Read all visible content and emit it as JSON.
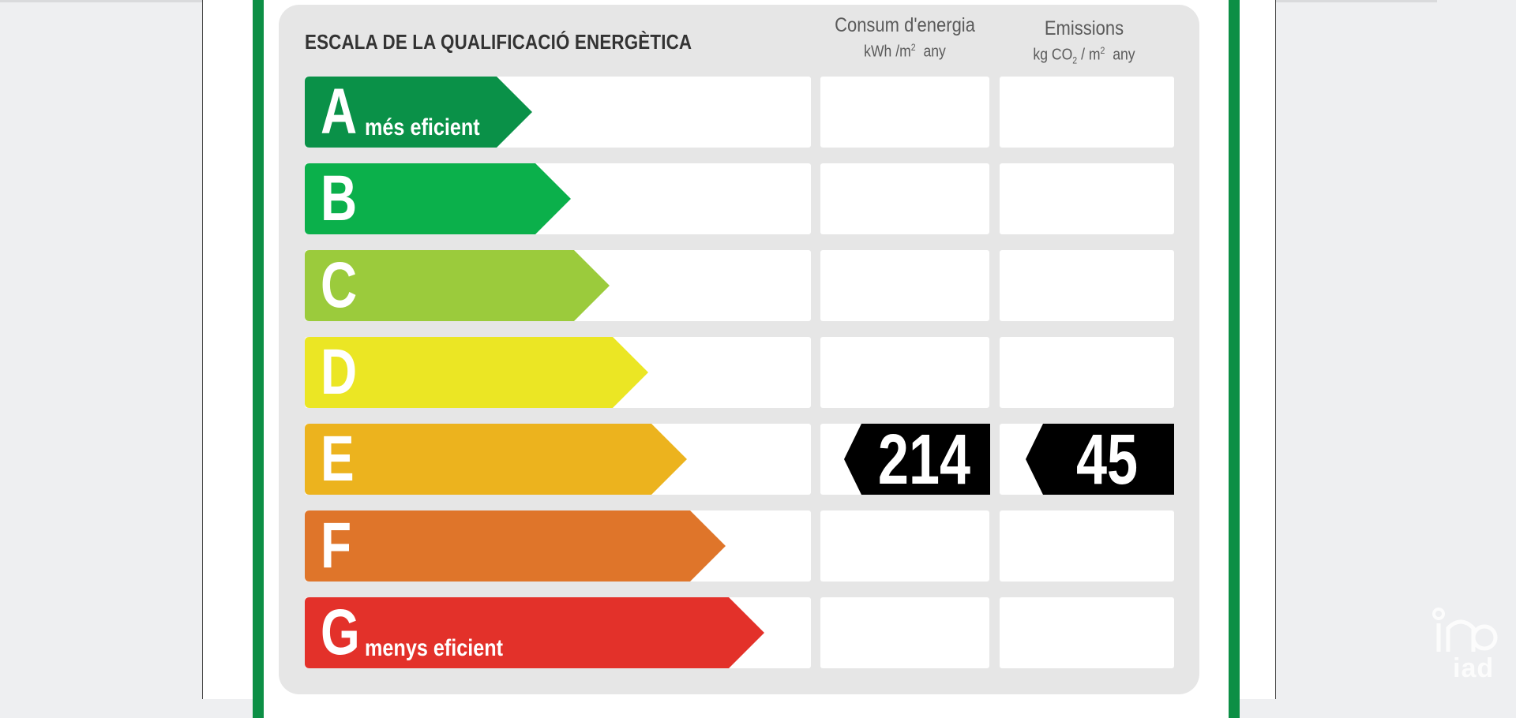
{
  "title": "ESCALA DE LA QUALIFICACIÓ ENERGÈTICA",
  "columns": {
    "energy": {
      "label": "Consum d'energia",
      "unit_prefix": "kWh /m",
      "unit_sup": "2",
      "unit_suffix": "any"
    },
    "emissions": {
      "label": "Emissions",
      "unit_prefix": "kg CO",
      "unit_sub": "2",
      "unit_mid": "/ m",
      "unit_sup": "2",
      "unit_suffix": "any"
    }
  },
  "ratings": [
    {
      "letter": "A",
      "sublabel": "més eficient",
      "color": "#0a9148"
    },
    {
      "letter": "B",
      "sublabel": "",
      "color": "#0bb04b"
    },
    {
      "letter": "C",
      "sublabel": "",
      "color": "#9bcb3c"
    },
    {
      "letter": "D",
      "sublabel": "",
      "color": "#ebe624"
    },
    {
      "letter": "E",
      "sublabel": "",
      "color": "#ecb31e"
    },
    {
      "letter": "F",
      "sublabel": "",
      "color": "#df752a"
    },
    {
      "letter": "G",
      "sublabel": "menys eficient",
      "color": "#e3312a"
    }
  ],
  "result": {
    "rating": "E",
    "energy_value": "214",
    "emissions_value": "45"
  },
  "watermark": {
    "text": "iad"
  }
}
